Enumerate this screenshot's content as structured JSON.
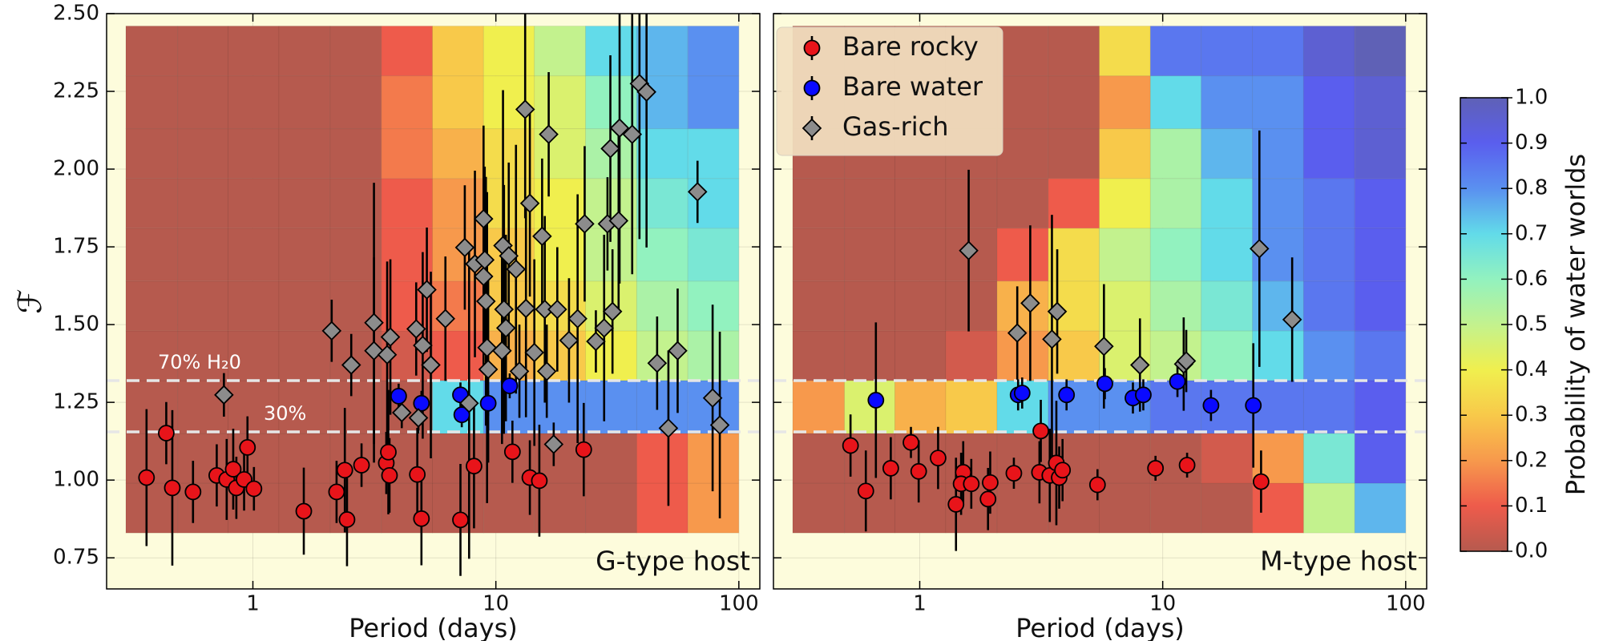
{
  "chart_data": [
    {
      "type": "scatter",
      "annotation": "G-type host",
      "xlabel": "Period (days)",
      "ylabel": "ℱ",
      "xscale": "log",
      "xlim": [
        0.25,
        122
      ],
      "ylim": [
        0.65,
        2.5
      ],
      "xticks": [
        1,
        10,
        100
      ],
      "yticks": [
        0.75,
        {
          "value": 1,
          "label": "1.00"
        },
        1.25,
        {
          "value": 1.5,
          "label": "1.50"
        },
        1.75,
        {
          "value": 2,
          "label": "2.00"
        },
        2.25,
        {
          "value": 2.5,
          "label": "2.50"
        }
      ],
      "ytick_labels": true,
      "grid": true,
      "background": "#fdfcdc",
      "heatmap": {
        "x_edges": [
          0.3,
          0.49,
          0.79,
          1.28,
          2.08,
          3.38,
          5.48,
          8.9,
          14.4,
          23.4,
          38,
          61.7,
          100
        ],
        "y_edges": [
          0.83,
          0.99,
          1.15,
          1.32,
          1.48,
          1.64,
          1.81,
          1.97,
          2.13,
          2.3,
          2.46
        ],
        "values": [
          [
            0,
            0,
            0,
            0,
            0,
            0,
            0,
            0,
            0,
            0,
            0.1,
            0.2
          ],
          [
            0,
            0,
            0,
            0,
            0,
            0,
            0,
            0,
            0,
            0,
            0.1,
            0.2
          ],
          [
            0,
            0,
            0,
            0,
            0,
            0,
            0.7,
            0.8,
            0.8,
            0.8,
            0.8,
            0.8
          ],
          [
            0,
            0,
            0,
            0,
            0,
            0.05,
            0.1,
            0.25,
            0.3,
            0.4,
            0.5,
            0.55
          ],
          [
            0,
            0,
            0,
            0,
            0,
            0.1,
            0.15,
            0.3,
            0.35,
            0.45,
            0.55,
            0.6
          ],
          [
            0,
            0,
            0,
            0,
            0,
            0.1,
            0.2,
            0.3,
            0.4,
            0.5,
            0.6,
            0.65
          ],
          [
            0,
            0,
            0,
            0,
            0,
            0.1,
            0.2,
            0.35,
            0.4,
            0.5,
            0.65,
            0.7
          ],
          [
            0,
            0,
            0,
            0,
            0,
            0.15,
            0.25,
            0.35,
            0.45,
            0.55,
            0.7,
            0.7
          ],
          [
            0,
            0,
            0,
            0,
            0,
            0.15,
            0.3,
            0.4,
            0.45,
            0.6,
            0.75,
            0.8
          ],
          [
            0,
            0,
            0,
            0,
            0,
            0.1,
            0.3,
            0.4,
            0.5,
            0.7,
            0.75,
            0.8
          ]
        ]
      },
      "hlines": [
        {
          "y": 1.32,
          "label": "70% H₂0"
        },
        {
          "y": 1.155,
          "label": "30%"
        }
      ],
      "series": [
        {
          "name": "Bare rocky",
          "color": "#e8141a",
          "marker": "circle",
          "x": [
            0.365,
            0.44,
            0.466,
            0.567,
            0.71,
            0.78,
            0.83,
            0.855,
            0.92,
            0.95,
            1.01,
            1.62,
            2.21,
            2.39,
            2.44,
            2.8,
            3.54,
            3.61,
            3.65,
            4.75,
            4.94,
            7.15,
            8.13,
            11.7,
            13.8,
            15.1,
            23.0
          ],
          "y": [
            1.008,
            1.151,
            0.975,
            0.962,
            1.015,
            1.002,
            1.035,
            0.975,
            1.002,
            1.105,
            0.972,
            0.9,
            0.962,
            1.032,
            0.873,
            1.048,
            1.055,
            1.09,
            1.015,
            1.018,
            0.876,
            0.872,
            1.045,
            1.091,
            1.008,
            0.998,
            1.098
          ],
          "yerr": [
            0.22,
            0.1,
            0.25,
            0.1,
            0.1,
            0.13,
            0.13,
            0.1,
            0.1,
            0.1,
            0.07,
            0.14,
            0.1,
            0.2,
            0.15,
            0.07,
            0.1,
            0.2,
            0.12,
            0.15,
            0.15,
            0.18,
            0.2,
            0.1,
            0.12,
            0.18,
            0.15
          ]
        },
        {
          "name": "Bare water",
          "color": "#0a0aff",
          "marker": "circle",
          "x": [
            3.98,
            4.94,
            7.15,
            7.24,
            9.3,
            11.4
          ],
          "y": [
            1.27,
            1.247,
            1.274,
            1.21,
            1.247,
            1.303
          ],
          "yerr": [
            0.04,
            0.04,
            0.04,
            0.04,
            0.04,
            0.04
          ]
        },
        {
          "name": "Gas-rich",
          "color": "#8c8c8c",
          "marker": "diamond",
          "x": [
            0.76,
            2.11,
            2.54,
            3.15,
            3.15,
            3.57,
            3.68,
            4.1,
            4.7,
            4.8,
            5.0,
            5.2,
            5.4,
            6.2,
            7.45,
            7.76,
            8.2,
            8.9,
            9.0,
            9.1,
            9.2,
            9.3,
            8.9,
            10.6,
            10.7,
            11.3,
            12.1,
            10.8,
            11.0,
            12.5,
            13.2,
            13.3,
            13.8,
            14.4,
            15.5,
            15.9,
            16.2,
            16.5,
            17.3,
            17.9,
            20.0,
            21.7,
            23.2,
            25.8,
            27.9,
            28.8,
            29.6,
            30.2,
            32.0,
            32.3,
            36.4,
            39.0,
            41.7,
            46.1,
            51.3,
            56.0,
            67.6,
            78.0,
            83.5
          ],
          "y": [
            1.274,
            1.48,
            1.37,
            1.506,
            1.416,
            1.403,
            1.46,
            1.217,
            1.486,
            1.2,
            1.433,
            1.612,
            1.37,
            1.519,
            1.748,
            1.247,
            1.695,
            1.84,
            1.708,
            1.575,
            1.426,
            1.356,
            1.655,
            1.416,
            1.754,
            1.721,
            1.678,
            1.549,
            1.489,
            1.35,
            2.192,
            1.552,
            1.89,
            1.41,
            1.784,
            1.549,
            1.35,
            2.112,
            1.115,
            1.549,
            1.449,
            1.519,
            1.824,
            1.446,
            1.489,
            1.824,
            2.066,
            1.542,
            1.834,
            2.132,
            2.112,
            2.275,
            2.248,
            1.376,
            1.167,
            1.416,
            1.927,
            1.264,
            1.177
          ],
          "yerr": [
            0.07,
            0.1,
            0.1,
            0.45,
            0.3,
            0.3,
            0.25,
            0.05,
            0.15,
            0.05,
            0.3,
            0.2,
            0.3,
            0.2,
            0.2,
            0.5,
            0.3,
            0.3,
            0.3,
            0.4,
            0.5,
            0.3,
            0.3,
            0.3,
            0.5,
            0.3,
            0.4,
            0.4,
            0.3,
            0.15,
            0.35,
            0.35,
            0.3,
            0.3,
            0.25,
            0.3,
            0.15,
            0.2,
            0.07,
            0.2,
            0.2,
            0.4,
            0.25,
            0.1,
            0.3,
            0.15,
            0.3,
            0.2,
            0.3,
            0.5,
            0.45,
            0.5,
            0.5,
            0.15,
            0.25,
            0.2,
            0.1,
            0.3,
            0.3
          ]
        }
      ]
    },
    {
      "type": "scatter",
      "annotation": "M-type host",
      "xlabel": "Period (days)",
      "xscale": "log",
      "xlim": [
        0.25,
        122
      ],
      "ylim": [
        0.65,
        2.5
      ],
      "xticks": [
        1,
        10,
        100
      ],
      "yticks": [
        0.75,
        1,
        1.25,
        1.5,
        1.75,
        2,
        2.25,
        2.5
      ],
      "ytick_labels": false,
      "grid": true,
      "background": "#fdfcdc",
      "legend": "upper left",
      "heatmap": {
        "x_edges": [
          0.3,
          0.49,
          0.79,
          1.28,
          2.08,
          3.38,
          5.48,
          8.9,
          14.4,
          23.4,
          38,
          61.7,
          100
        ],
        "y_edges": [
          0.83,
          0.99,
          1.15,
          1.32,
          1.48,
          1.64,
          1.81,
          1.97,
          2.13,
          2.3,
          2.46
        ],
        "values": [
          [
            0,
            0,
            0,
            0,
            0,
            0,
            0,
            0,
            0,
            0.1,
            0.5,
            0.75
          ],
          [
            0,
            0,
            0,
            0,
            0,
            0,
            0,
            0,
            0.05,
            0.2,
            0.65,
            0.9
          ],
          [
            0.2,
            0.45,
            0.25,
            0.3,
            0.7,
            0.8,
            0.8,
            0.85,
            0.85,
            0.85,
            0.85,
            0.9
          ],
          [
            0,
            0,
            0,
            0.05,
            0.2,
            0.3,
            0.45,
            0.5,
            0.6,
            0.7,
            0.8,
            0.85
          ],
          [
            0,
            0,
            0,
            0,
            0.25,
            0.35,
            0.45,
            0.55,
            0.65,
            0.75,
            0.85,
            0.9
          ],
          [
            0,
            0,
            0,
            0,
            0.1,
            0.35,
            0.5,
            0.6,
            0.7,
            0.8,
            0.85,
            0.9
          ],
          [
            0,
            0,
            0,
            0,
            0,
            0.1,
            0.4,
            0.55,
            0.7,
            0.8,
            0.85,
            0.9
          ],
          [
            0,
            0,
            0,
            0,
            0,
            0,
            0.3,
            0.55,
            0.75,
            0.8,
            0.9,
            0.95
          ],
          [
            0,
            0,
            0,
            0,
            0,
            0,
            0.2,
            0.7,
            0.8,
            0.8,
            0.9,
            0.95
          ],
          [
            0,
            0,
            0,
            0,
            0,
            0,
            0.35,
            0.85,
            0.85,
            0.85,
            0.95,
            1.0
          ]
        ]
      },
      "hlines": [
        {
          "y": 1.32
        },
        {
          "y": 1.155
        }
      ],
      "series": [
        {
          "name": "Bare rocky",
          "color": "#e8141a",
          "marker": "circle",
          "x": [
            0.519,
            0.6,
            0.76,
            0.92,
            0.99,
            1.19,
            1.41,
            1.51,
            1.48,
            1.63,
            1.91,
            1.95,
            2.44,
            3.11,
            3.15,
            3.43,
            3.65,
            3.75,
            3.87,
            5.39,
            9.34,
            12.6,
            25.4
          ],
          "y": [
            1.111,
            0.965,
            1.038,
            1.121,
            1.028,
            1.071,
            0.922,
            1.025,
            0.988,
            0.988,
            0.939,
            0.992,
            1.022,
            1.025,
            1.158,
            1.015,
            1.055,
            1.008,
            1.032,
            0.985,
            1.038,
            1.048,
            0.995
          ],
          "yerr": [
            0.1,
            0.13,
            0.1,
            0.05,
            0.1,
            0.1,
            0.15,
            0.1,
            0.1,
            0.08,
            0.1,
            0.1,
            0.05,
            0.1,
            0.1,
            0.15,
            0.2,
            0.1,
            0.1,
            0.05,
            0.04,
            0.04,
            0.1
          ]
        },
        {
          "name": "Bare water",
          "color": "#0a0aff",
          "marker": "circle",
          "x": [
            0.66,
            2.54,
            2.64,
            4.02,
            5.78,
            7.54,
            8.32,
            11.5,
            15.8,
            23.6
          ],
          "y": [
            1.257,
            1.274,
            1.28,
            1.274,
            1.31,
            1.264,
            1.274,
            1.317,
            1.24,
            1.24
          ],
          "yerr": [
            0.25,
            0.05,
            0.05,
            0.05,
            0.05,
            0.05,
            0.05,
            0.05,
            0.05,
            0.2
          ]
        },
        {
          "name": "Gas-rich",
          "color": "#8c8c8c",
          "marker": "diamond",
          "x": [
            1.59,
            2.52,
            2.85,
            3.5,
            3.68,
            5.73,
            8.06,
            12.2,
            12.5,
            25.0,
            34.1
          ],
          "y": [
            1.738,
            1.473,
            1.569,
            1.453,
            1.542,
            1.43,
            1.37,
            1.373,
            1.383,
            1.744,
            1.516
          ],
          "yerr": [
            0.26,
            0.15,
            0.25,
            0.4,
            0.2,
            0.2,
            0.15,
            0.15,
            0.1,
            0.38,
            0.2
          ]
        }
      ]
    }
  ],
  "colorbar": {
    "label": "Probability of water worlds",
    "lim": [
      0,
      1
    ],
    "ticks": [
      {
        "value": 0,
        "label": "0.0"
      },
      0.1,
      0.2,
      0.3,
      0.4,
      0.5,
      0.6,
      0.7,
      0.8,
      0.9,
      {
        "value": 1,
        "label": "1.0"
      }
    ],
    "colors": [
      "#b65a4e",
      "#ee5b4b",
      "#f7994c",
      "#f8c94a",
      "#f0ef4e",
      "#c3f28e",
      "#92f2bf",
      "#62dbe9",
      "#5a90f0",
      "#5a5eee",
      "#5f61b6"
    ]
  }
}
